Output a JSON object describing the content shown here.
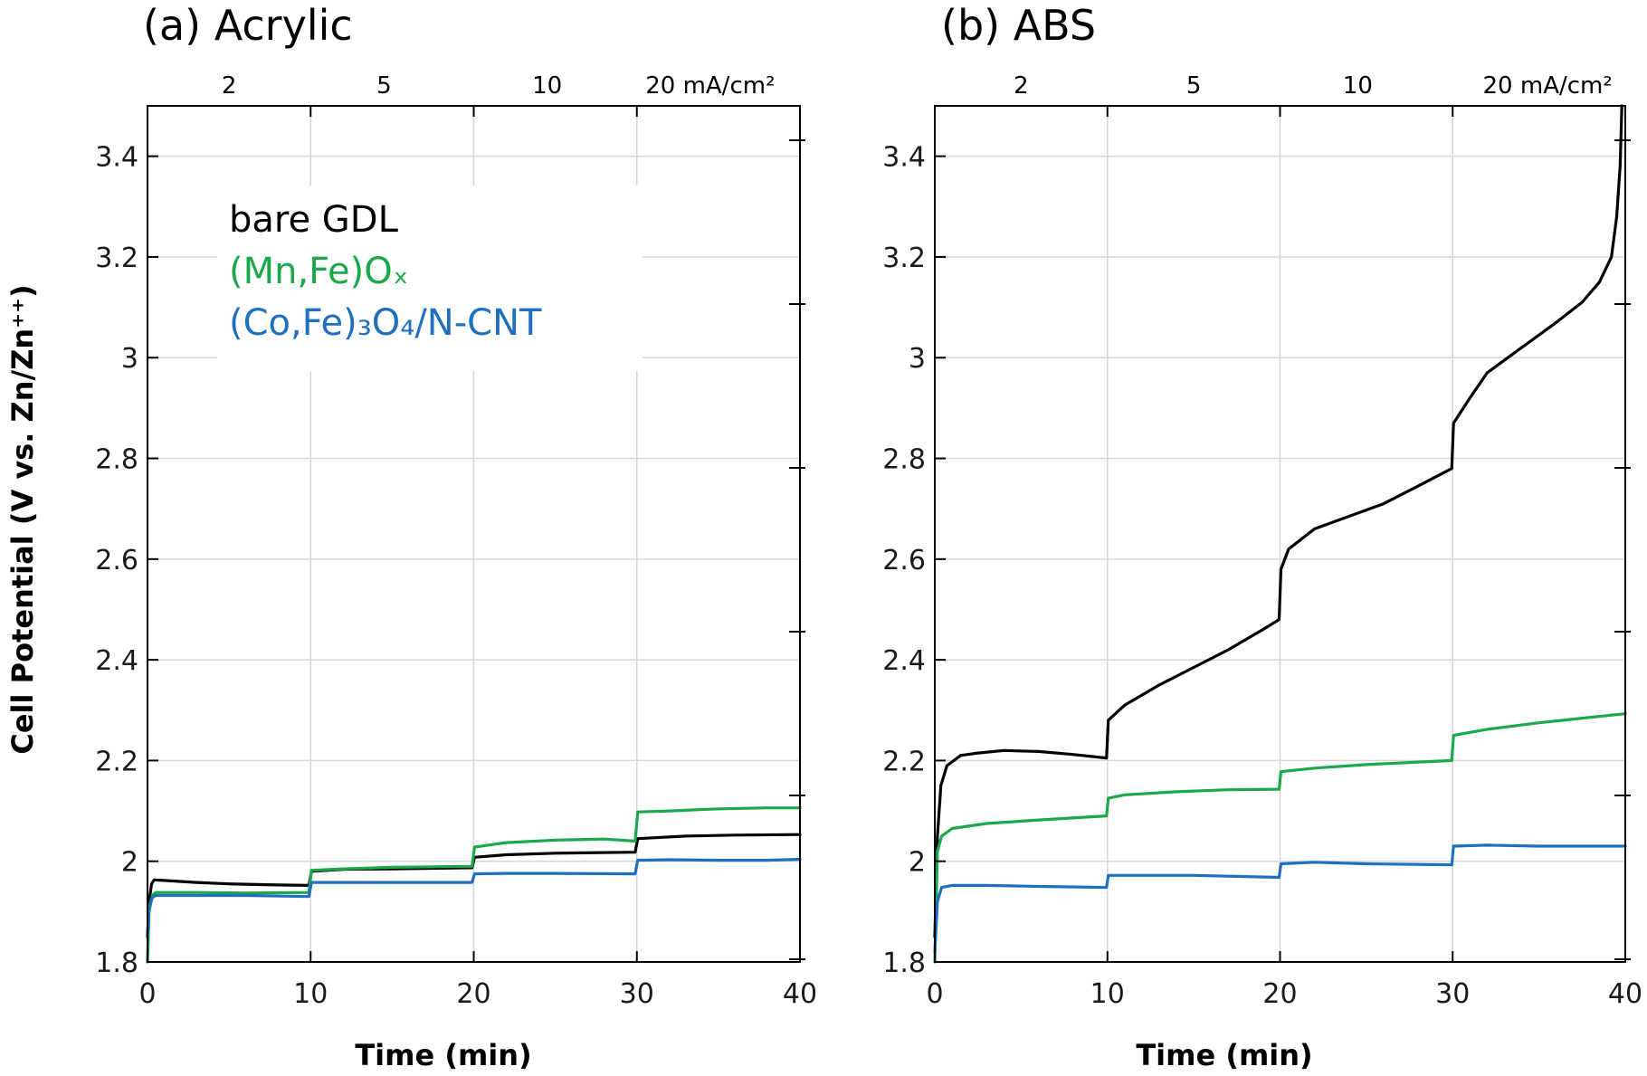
{
  "y_axis_title": "Cell Potential (V vs. Zn/Zn⁺⁺)",
  "current_density_labels": [
    "2",
    "5",
    "10",
    "20 mA/cm²"
  ],
  "legend": {
    "bare": "bare GDL",
    "mnfe": "(Mn,Fe)Oₓ",
    "cofe": "(Co,Fe)₃O₄/N-CNT"
  },
  "chart_data": [
    {
      "type": "line",
      "panel": "a",
      "title": "(a) Acrylic",
      "xlabel": "Time (min)",
      "ylabel": "Cell Potential (V vs. Zn/Zn⁺⁺)",
      "xlim": [
        0,
        40
      ],
      "ylim": [
        1.8,
        3.5
      ],
      "xticks": [
        0,
        10,
        20,
        30,
        40
      ],
      "yticks": [
        1.8,
        2,
        2.2,
        2.4,
        2.6,
        2.8,
        3,
        3.2,
        3.4
      ],
      "ytick_labels": [
        "1.8",
        "2",
        "2.2",
        "2.4",
        "2.6",
        "2.8",
        "3",
        "3.2",
        "3.4"
      ],
      "grid": true,
      "top_annotations": [
        {
          "x": 5,
          "label": "2"
        },
        {
          "x": 14.5,
          "label": "5"
        },
        {
          "x": 24.5,
          "label": "10"
        },
        {
          "x": 34.5,
          "label": "20 mA/cm²"
        }
      ],
      "series": [
        {
          "name": "bare GDL",
          "color": "#000000",
          "x": [
            0,
            0.1,
            0.25,
            0.4,
            1,
            3,
            5,
            8,
            9.9,
            10.05,
            12,
            15,
            19.9,
            20.05,
            22,
            25,
            29.9,
            30.05,
            33,
            36,
            40
          ],
          "y": [
            1.85,
            1.92,
            1.955,
            1.963,
            1.962,
            1.958,
            1.955,
            1.953,
            1.952,
            1.98,
            1.984,
            1.985,
            1.987,
            2.008,
            2.013,
            2.016,
            2.018,
            2.045,
            2.05,
            2.052,
            2.053
          ]
        },
        {
          "name": "(Mn,Fe)Oₓ",
          "color": "#1aa84a",
          "x": [
            0,
            0.1,
            0.3,
            0.5,
            3,
            6,
            9.9,
            10.05,
            12,
            15,
            19.9,
            20.05,
            22,
            25,
            28,
            29.9,
            30.05,
            32,
            35,
            38,
            40
          ],
          "y": [
            1.8,
            1.9,
            1.932,
            1.938,
            1.938,
            1.937,
            1.938,
            1.982,
            1.985,
            1.988,
            1.99,
            2.028,
            2.037,
            2.042,
            2.044,
            2.04,
            2.098,
            2.1,
            2.104,
            2.106,
            2.106
          ]
        },
        {
          "name": "(Co,Fe)₃O₄/N-CNT",
          "color": "#1f6fc0",
          "x": [
            0,
            0.1,
            0.3,
            0.5,
            3,
            6,
            9.9,
            10.05,
            12,
            15,
            19.9,
            20.05,
            22,
            25,
            29.9,
            30.05,
            32,
            35,
            38,
            40
          ],
          "y": [
            1.85,
            1.91,
            1.928,
            1.932,
            1.932,
            1.932,
            1.93,
            1.958,
            1.958,
            1.958,
            1.958,
            1.975,
            1.976,
            1.976,
            1.975,
            2.002,
            2.003,
            2.002,
            2.002,
            2.004
          ]
        }
      ]
    },
    {
      "type": "line",
      "panel": "b",
      "title": "(b) ABS",
      "xlabel": "Time (min)",
      "ylabel": "",
      "xlim": [
        0,
        40
      ],
      "ylim": [
        1.8,
        3.5
      ],
      "xticks": [
        0,
        10,
        20,
        30,
        40
      ],
      "yticks": [
        1.8,
        2,
        2.2,
        2.4,
        2.6,
        2.8,
        3,
        3.2,
        3.4
      ],
      "ytick_labels": [
        "1.8",
        "2",
        "2.2",
        "2.4",
        "2.6",
        "2.8",
        "3",
        "3.2",
        "3.4"
      ],
      "grid": true,
      "top_annotations": [
        {
          "x": 5,
          "label": "2"
        },
        {
          "x": 15,
          "label": "5"
        },
        {
          "x": 24.5,
          "label": "10"
        },
        {
          "x": 35.5,
          "label": "20 mA/cm²"
        }
      ],
      "series": [
        {
          "name": "bare GDL",
          "color": "#000000",
          "x": [
            0,
            0.15,
            0.35,
            0.7,
            1.5,
            2.5,
            4,
            6,
            8,
            9.95,
            10.05,
            11,
            13,
            15,
            17,
            19,
            19.95,
            20.05,
            20.5,
            22,
            24,
            26,
            28,
            29.95,
            30.05,
            31,
            32,
            34,
            36,
            37.5,
            38.5,
            39.2,
            39.5,
            39.7,
            39.8
          ],
          "y": [
            1.85,
            2.05,
            2.15,
            2.19,
            2.21,
            2.215,
            2.22,
            2.218,
            2.212,
            2.205,
            2.28,
            2.31,
            2.35,
            2.385,
            2.42,
            2.46,
            2.48,
            2.58,
            2.62,
            2.66,
            2.685,
            2.71,
            2.745,
            2.78,
            2.87,
            2.92,
            2.97,
            3.02,
            3.07,
            3.11,
            3.15,
            3.2,
            3.28,
            3.38,
            3.5
          ]
        },
        {
          "name": "(Mn,Fe)Oₓ",
          "color": "#1aa84a",
          "x": [
            0,
            0.15,
            0.4,
            1,
            3,
            6,
            9.95,
            10.05,
            11,
            14,
            17,
            19.95,
            20.05,
            22,
            25,
            28,
            29.95,
            30.05,
            32,
            35,
            38,
            40
          ],
          "y": [
            1.8,
            2.02,
            2.05,
            2.065,
            2.075,
            2.082,
            2.09,
            2.125,
            2.132,
            2.138,
            2.142,
            2.143,
            2.178,
            2.185,
            2.192,
            2.197,
            2.2,
            2.25,
            2.262,
            2.275,
            2.286,
            2.293
          ]
        },
        {
          "name": "(Co,Fe)₃O₄/N-CNT",
          "color": "#1f6fc0",
          "x": [
            0,
            0.15,
            0.4,
            1,
            3,
            6,
            9.95,
            10.05,
            12,
            15,
            19.95,
            20.05,
            22,
            25,
            29.95,
            30.05,
            32,
            35,
            38,
            40
          ],
          "y": [
            1.82,
            1.92,
            1.948,
            1.952,
            1.952,
            1.95,
            1.948,
            1.972,
            1.972,
            1.972,
            1.968,
            1.995,
            1.998,
            1.995,
            1.993,
            2.03,
            2.032,
            2.03,
            2.03,
            2.03
          ]
        }
      ]
    }
  ]
}
